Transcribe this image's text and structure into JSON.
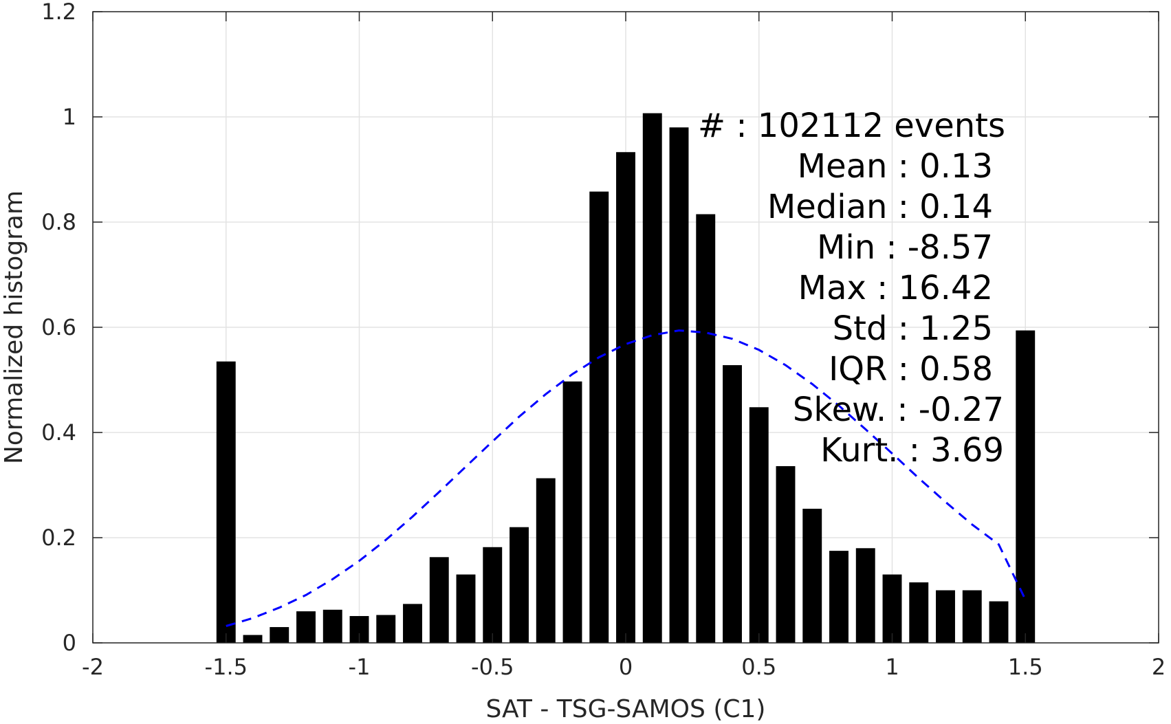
{
  "chart_data": {
    "type": "bar",
    "xlabel": "SAT - TSG-SAMOS (C1)",
    "ylabel": "Normalized histogram",
    "xlim": [
      -2,
      2
    ],
    "ylim": [
      0,
      1.2
    ],
    "xticks": [
      "-2",
      "-1.5",
      "-1",
      "-0.5",
      "0",
      "0.5",
      "1",
      "1.5",
      "2"
    ],
    "yticks": [
      "0",
      "0.2",
      "0.4",
      "0.6",
      "0.8",
      "1",
      "1.2"
    ],
    "grid": true,
    "bin_centers": [
      -1.5,
      -1.4,
      -1.3,
      -1.2,
      -1.1,
      -1.0,
      -0.9,
      -0.8,
      -0.7,
      -0.6,
      -0.5,
      -0.4,
      -0.3,
      -0.2,
      -0.1,
      0.0,
      0.1,
      0.2,
      0.3,
      0.4,
      0.5,
      0.6,
      0.7,
      0.8,
      0.9,
      1.0,
      1.1,
      1.2,
      1.3,
      1.4,
      1.5
    ],
    "values": [
      0.535,
      0.015,
      0.03,
      0.06,
      0.063,
      0.051,
      0.053,
      0.074,
      0.163,
      0.13,
      0.182,
      0.22,
      0.313,
      0.497,
      0.858,
      0.933,
      1.007,
      0.98,
      0.815,
      0.528,
      0.448,
      0.336,
      0.255,
      0.175,
      0.18,
      0.13,
      0.115,
      0.1,
      0.1,
      0.079,
      0.594
    ],
    "bar_color": "#000000",
    "fit_curve": {
      "style": "dashed",
      "color": "#0000ff",
      "x": [
        -1.5,
        -1.4,
        -1.3,
        -1.2,
        -1.1,
        -1.0,
        -0.9,
        -0.8,
        -0.7,
        -0.6,
        -0.5,
        -0.4,
        -0.3,
        -0.2,
        -0.1,
        0.0,
        0.1,
        0.2,
        0.3,
        0.4,
        0.5,
        0.6,
        0.7,
        0.8,
        0.9,
        1.0,
        1.1,
        1.2,
        1.3,
        1.4,
        1.5
      ],
      "y": [
        0.032,
        0.047,
        0.067,
        0.091,
        0.121,
        0.156,
        0.196,
        0.24,
        0.287,
        0.335,
        0.383,
        0.43,
        0.473,
        0.511,
        0.543,
        0.568,
        0.585,
        0.594,
        0.59,
        0.578,
        0.557,
        0.528,
        0.492,
        0.451,
        0.406,
        0.36,
        0.313,
        0.268,
        0.225,
        0.187,
        0.082
      ]
    },
    "stats": [
      "#  : 102112 events",
      "Mean : 0.13",
      "Median : 0.14",
      "Min : -8.57",
      "Max : 16.42",
      "Std : 1.25",
      "IQR : 0.58",
      "Skew. : -0.27",
      "Kurt. : 3.69"
    ]
  }
}
